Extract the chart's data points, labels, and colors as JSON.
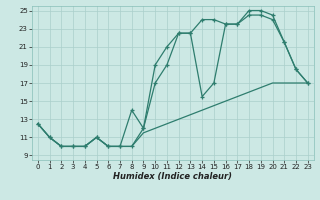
{
  "xlabel": "Humidex (Indice chaleur)",
  "bg_color": "#cce8e4",
  "grid_color": "#aacfcb",
  "line_color": "#2e7d6e",
  "xlim": [
    -0.5,
    23.5
  ],
  "ylim": [
    8.5,
    25.5
  ],
  "yticks": [
    9,
    11,
    13,
    15,
    17,
    19,
    21,
    23,
    25
  ],
  "xticks": [
    0,
    1,
    2,
    3,
    4,
    5,
    6,
    7,
    8,
    9,
    10,
    11,
    12,
    13,
    14,
    15,
    16,
    17,
    18,
    19,
    20,
    21,
    22,
    23
  ],
  "series1_x": [
    0,
    1,
    2,
    3,
    4,
    5,
    6,
    7,
    8,
    9,
    10,
    11,
    12,
    13,
    14,
    15,
    16,
    17,
    18,
    19,
    20,
    21,
    22,
    23
  ],
  "series1_y": [
    12.5,
    11,
    10,
    10,
    10,
    11,
    10,
    10,
    10,
    11.5,
    12,
    12.5,
    13,
    13.5,
    14,
    14.5,
    15,
    15.5,
    16,
    16.5,
    17,
    17,
    17,
    17
  ],
  "series2_x": [
    0,
    1,
    2,
    3,
    4,
    5,
    6,
    7,
    8,
    9,
    10,
    11,
    12,
    13,
    14,
    15,
    16,
    17,
    18,
    19,
    20,
    21,
    22,
    23
  ],
  "series2_y": [
    12.5,
    11,
    10,
    10,
    10,
    11,
    10,
    10,
    14,
    12,
    19,
    21,
    22.5,
    22.5,
    24,
    24,
    23.5,
    23.5,
    25,
    25,
    24.5,
    21.5,
    18.5,
    17
  ],
  "series3_x": [
    0,
    1,
    2,
    3,
    4,
    5,
    6,
    7,
    8,
    9,
    10,
    11,
    12,
    13,
    14,
    15,
    16,
    17,
    18,
    19,
    20,
    21,
    22,
    23
  ],
  "series3_y": [
    12.5,
    11,
    10,
    10,
    10,
    11,
    10,
    10,
    10,
    12,
    17,
    19,
    22.5,
    22.5,
    15.5,
    17,
    23.5,
    23.5,
    24.5,
    24.5,
    24,
    21.5,
    18.5,
    17
  ]
}
